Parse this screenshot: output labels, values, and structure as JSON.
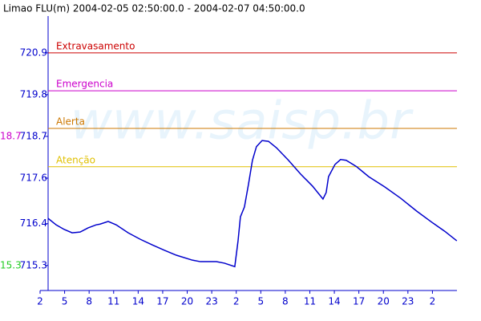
{
  "chart_data": {
    "type": "line",
    "title": "Limao FLU(m) 2004-02-05 02:50:00.0 - 2004-02-07 04:50:00.0",
    "watermark": "www.saisp.br",
    "x": [
      2.98,
      3.96,
      4.94,
      5.92,
      6.9,
      7.88,
      8.86,
      9.35,
      10.33,
      11.31,
      12.78,
      14.25,
      15.73,
      17.2,
      18.67,
      20.63,
      21.61,
      23.57,
      24.55,
      25.82,
      26.22,
      26.51,
      27.0,
      27.49,
      27.98,
      28.47,
      29.16,
      29.94,
      30.92,
      32.39,
      33.86,
      35.33,
      36.61,
      37.0,
      37.29,
      38.08,
      38.76,
      39.45,
      40.73,
      42.2,
      44.16,
      46.12,
      48.08,
      50.04,
      51.51,
      52.98
    ],
    "series": [
      {
        "color": "#0000cc",
        "values": [
          716.54,
          716.37,
          716.25,
          716.16,
          716.18,
          716.29,
          716.37,
          716.39,
          716.46,
          716.37,
          716.16,
          715.99,
          715.84,
          715.7,
          715.57,
          715.44,
          715.4,
          715.4,
          715.36,
          715.27,
          715.95,
          716.58,
          716.84,
          717.43,
          718.07,
          718.43,
          718.59,
          718.57,
          718.4,
          718.07,
          717.71,
          717.39,
          717.05,
          717.22,
          717.64,
          717.96,
          718.09,
          718.07,
          717.9,
          717.64,
          717.37,
          717.07,
          716.73,
          716.42,
          716.2,
          715.95
        ]
      }
    ],
    "xlim": [
      2,
      53
    ],
    "ylim": [
      714.64,
      721.87
    ],
    "xticks": [
      {
        "value": 2,
        "label": "2"
      },
      {
        "value": 5,
        "label": "5"
      },
      {
        "value": 8,
        "label": "8"
      },
      {
        "value": 11,
        "label": "11"
      },
      {
        "value": 14,
        "label": "14"
      },
      {
        "value": 17,
        "label": "17"
      },
      {
        "value": 20,
        "label": "20"
      },
      {
        "value": 23,
        "label": "23"
      },
      {
        "value": 26,
        "label": "2"
      },
      {
        "value": 29,
        "label": "5"
      },
      {
        "value": 32,
        "label": "8"
      },
      {
        "value": 35,
        "label": "11"
      },
      {
        "value": 38,
        "label": "14"
      },
      {
        "value": 41,
        "label": "17"
      },
      {
        "value": 44,
        "label": "20"
      },
      {
        "value": 47,
        "label": "23"
      },
      {
        "value": 50,
        "label": "2"
      }
    ],
    "yticks": [
      720.9,
      719.8,
      718.7,
      717.6,
      716.4,
      715.3
    ],
    "thresholds": [
      {
        "label": "Extravasamento",
        "value": 720.9,
        "color": "#cc0000"
      },
      {
        "label": "Emergencia",
        "value": 719.9,
        "color": "#cc00cc"
      },
      {
        "label": "Alerta",
        "value": 718.91,
        "color": "#cc7700"
      },
      {
        "label": "Atenção",
        "value": 717.9,
        "color": "#e0c000"
      }
    ],
    "annotations": [
      {
        "label": "18.7",
        "value": 718.7,
        "color": "#cc00cc"
      },
      {
        "label": "15.3",
        "value": 715.3,
        "color": "#22cc22"
      }
    ]
  }
}
